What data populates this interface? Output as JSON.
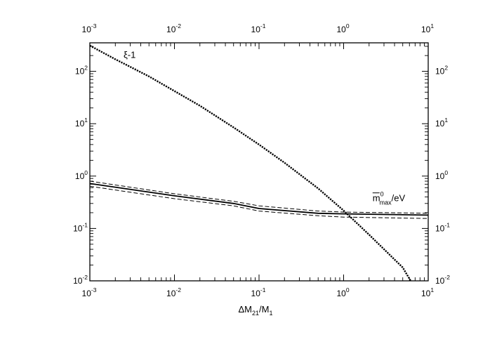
{
  "chart_data": {
    "type": "line",
    "title": "",
    "xlabel": "ΔM21/M1",
    "ylabel": "",
    "xscale": "log",
    "yscale": "log",
    "xlim": [
      0.001,
      10
    ],
    "ylim": [
      0.01,
      350
    ],
    "grid": false,
    "legend": "none",
    "x_ticks": [
      {
        "base": "10",
        "exp": "-3",
        "value": 0.001
      },
      {
        "base": "10",
        "exp": "-2",
        "value": 0.01
      },
      {
        "base": "10",
        "exp": "-1",
        "value": 0.1
      },
      {
        "base": "10",
        "exp": "0",
        "value": 1
      },
      {
        "base": "10",
        "exp": "1",
        "value": 10
      }
    ],
    "y_ticks": [
      {
        "base": "10",
        "exp": "-2",
        "value": 0.01
      },
      {
        "base": "10",
        "exp": "-1",
        "value": 0.1
      },
      {
        "base": "10",
        "exp": "0",
        "value": 1
      },
      {
        "base": "10",
        "exp": "1",
        "value": 10
      },
      {
        "base": "10",
        "exp": "2",
        "value": 100
      }
    ],
    "xlabel_parts": {
      "pre": "ΔM",
      "sub1": "21",
      "mid": "/M",
      "sub2": "1"
    },
    "annotations": {
      "xi": {
        "text": "ξ-1",
        "x": 0.0025,
        "y": 180
      },
      "mmax": {
        "m": "m",
        "sup": "0",
        "sub": "max",
        "unit": "/eV",
        "x": 2.2,
        "y": 0.33
      }
    },
    "series": [
      {
        "style": "dotted-thick",
        "x": [
          0.001,
          0.002,
          0.005,
          0.01,
          0.02,
          0.05,
          0.1,
          0.2,
          0.5,
          1,
          2,
          5,
          6.2
        ],
        "y": [
          310,
          170,
          80,
          42,
          22,
          8.5,
          4,
          1.8,
          0.58,
          0.22,
          0.076,
          0.018,
          0.01
        ]
      },
      {
        "style": "solid",
        "x": [
          0.001,
          0.01,
          0.05,
          0.1,
          0.5,
          1,
          10
        ],
        "y": [
          0.72,
          0.42,
          0.3,
          0.24,
          0.195,
          0.19,
          0.18
        ]
      },
      {
        "style": "dashed",
        "x": [
          0.001,
          0.01,
          0.05,
          0.1,
          0.5,
          1,
          10
        ],
        "y": [
          0.8,
          0.46,
          0.33,
          0.27,
          0.215,
          0.205,
          0.195
        ]
      },
      {
        "style": "dashed",
        "x": [
          0.001,
          0.01,
          0.05,
          0.1,
          0.5,
          1,
          10
        ],
        "y": [
          0.64,
          0.37,
          0.27,
          0.215,
          0.175,
          0.165,
          0.155
        ]
      }
    ]
  }
}
